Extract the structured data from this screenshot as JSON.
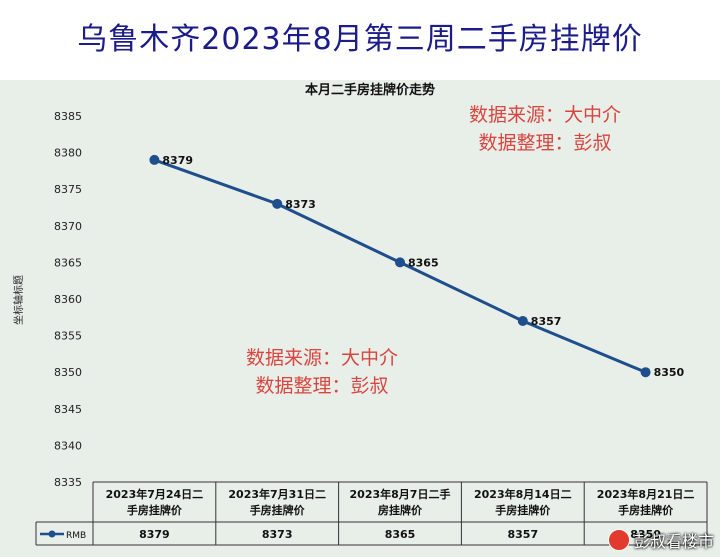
{
  "header": {
    "title": "乌鲁木齐2023年8月第三周二手房挂牌价"
  },
  "chart_data": {
    "type": "line",
    "title": "本月二手房挂牌价走势",
    "xlabel": "",
    "ylabel": "坐标轴标题",
    "ylim": [
      8335,
      8385
    ],
    "ytick_step": 5,
    "grid": false,
    "categories": [
      [
        "2023年7月24日二",
        "手房挂牌价"
      ],
      [
        "2023年7月31日二",
        "手房挂牌价"
      ],
      [
        "2023年8月7日二手",
        "房挂牌价"
      ],
      [
        "2023年8月14日二",
        "手房挂牌价"
      ],
      [
        "2023年8月21日二",
        "手房挂牌价"
      ]
    ],
    "series": [
      {
        "name": "RMB",
        "values": [
          8379,
          8373,
          8365,
          8357,
          8350
        ]
      }
    ],
    "data_table": true,
    "annotations": [
      {
        "lines": [
          "数据来源：大中介",
          "数据整理：彭叔"
        ]
      },
      {
        "lines": [
          "数据来源：大中介",
          "数据整理：彭叔"
        ]
      }
    ],
    "colors": {
      "series": "#1f4e8c",
      "annotation": "#d9453f",
      "background": "#e8efe9"
    }
  },
  "watermark": {
    "text": "彭叔看楼市"
  }
}
